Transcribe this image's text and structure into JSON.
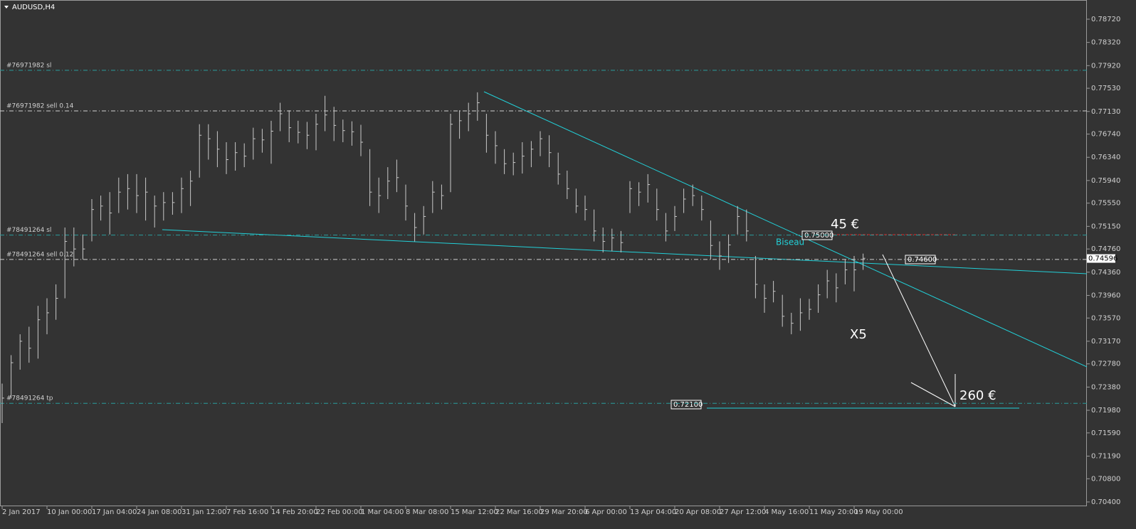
{
  "chart_data": {
    "type": "ohlc",
    "title": "AUDUSD,H4",
    "categories": [
      "2 Jan 2017",
      null,
      null,
      null,
      null,
      "10 Jan 00:00",
      null,
      null,
      null,
      null,
      "17 Jan 04:00",
      null,
      null,
      null,
      null,
      "24 Jan 08:00",
      null,
      null,
      null,
      null,
      "31 Jan 12:00",
      null,
      null,
      null,
      null,
      "7 Feb 16:00",
      null,
      null,
      null,
      null,
      "14 Feb 20:00",
      null,
      null,
      null,
      null,
      "22 Feb 00:00",
      null,
      null,
      null,
      null,
      "1 Mar 04:00",
      null,
      null,
      null,
      null,
      "8 Mar 08:00",
      null,
      null,
      null,
      null,
      "15 Mar 12:00",
      null,
      null,
      null,
      null,
      "22 Mar 16:00",
      null,
      null,
      null,
      null,
      "29 Mar 20:00",
      null,
      null,
      null,
      null,
      "6 Apr 00:00",
      null,
      null,
      null,
      null,
      "13 Apr 04:00",
      null,
      null,
      null,
      null,
      "20 Apr 08:00",
      null,
      null,
      null,
      null,
      "27 Apr 12:00",
      null,
      null,
      null,
      null,
      "4 May 16:00",
      null,
      null,
      null,
      null,
      "11 May 20:00",
      null,
      null,
      null,
      null,
      "19 May 00:00",
      null
    ],
    "high": [
      0.7244,
      0.7293,
      0.7329,
      0.7342,
      0.7378,
      0.7391,
      0.7415,
      0.7513,
      0.7513,
      0.7501,
      0.7562,
      0.7568,
      0.7574,
      0.7599,
      0.7605,
      0.7605,
      0.7599,
      0.7568,
      0.7574,
      0.7574,
      0.7599,
      0.7611,
      0.7691,
      0.7691,
      0.7679,
      0.766,
      0.766,
      0.7658,
      0.7685,
      0.7683,
      0.7697,
      0.7728,
      0.7715,
      0.7697,
      0.7695,
      0.7709,
      0.774,
      0.7721,
      0.7699,
      0.7696,
      0.769,
      0.7648,
      0.7599,
      0.7617,
      0.763,
      0.7587,
      0.7538,
      0.755,
      0.7593,
      0.7587,
      0.7709,
      0.7715,
      0.7728,
      0.7746,
      0.7709,
      0.7679,
      0.7648,
      0.7642,
      0.766,
      0.7662,
      0.7679,
      0.7672,
      0.7642,
      0.7611,
      0.758,
      0.7568,
      0.7544,
      0.7513,
      0.7511,
      0.7507,
      0.7593,
      0.7591,
      0.7605,
      0.758,
      0.7538,
      0.755,
      0.758,
      0.7587,
      0.7568,
      0.7525,
      0.7489,
      0.7501,
      0.755,
      0.7544,
      0.7464,
      0.7415,
      0.7421,
      0.7397,
      0.7366,
      0.7391,
      0.739,
      0.7415,
      0.744,
      0.7434,
      0.7458,
      0.7464,
      0.7468
    ],
    "low": [
      0.7176,
      0.7219,
      0.7268,
      0.728,
      0.7287,
      0.7329,
      0.7354,
      0.7391,
      0.7446,
      0.7458,
      0.7489,
      0.7525,
      0.7501,
      0.7538,
      0.7544,
      0.7538,
      0.7525,
      0.7513,
      0.7525,
      0.7535,
      0.7538,
      0.755,
      0.7599,
      0.763,
      0.7617,
      0.7605,
      0.7611,
      0.7617,
      0.763,
      0.7642,
      0.7623,
      0.7679,
      0.766,
      0.7658,
      0.7648,
      0.7646,
      0.7679,
      0.7662,
      0.766,
      0.7654,
      0.7636,
      0.755,
      0.7538,
      0.7562,
      0.7574,
      0.7525,
      0.7489,
      0.7501,
      0.7538,
      0.7544,
      0.7574,
      0.7666,
      0.7679,
      0.7697,
      0.7642,
      0.7623,
      0.7605,
      0.7603,
      0.7606,
      0.7617,
      0.7636,
      0.7617,
      0.7587,
      0.7562,
      0.7538,
      0.7525,
      0.7489,
      0.747,
      0.7472,
      0.747,
      0.7538,
      0.755,
      0.7556,
      0.7525,
      0.7489,
      0.7507,
      0.7538,
      0.755,
      0.7525,
      0.7458,
      0.744,
      0.7452,
      0.7501,
      0.7489,
      0.7391,
      0.7366,
      0.7384,
      0.7342,
      0.7329,
      0.7335,
      0.7354,
      0.7366,
      0.7391,
      0.7384,
      0.7415,
      0.7403,
      0.744
    ],
    "close": [
      0.7219,
      0.728,
      0.7317,
      0.7305,
      0.7354,
      0.7366,
      0.7391,
      0.7489,
      0.7476,
      0.7476,
      0.7544,
      0.755,
      0.7538,
      0.7574,
      0.758,
      0.7568,
      0.7574,
      0.755,
      0.7556,
      0.7556,
      0.758,
      0.7593,
      0.7672,
      0.7666,
      0.7648,
      0.763,
      0.7642,
      0.7636,
      0.7666,
      0.7664,
      0.7679,
      0.7709,
      0.7685,
      0.7677,
      0.7672,
      0.7691,
      0.7707,
      0.7689,
      0.768,
      0.7678,
      0.766,
      0.7574,
      0.7568,
      0.7593,
      0.7599,
      0.755,
      0.7513,
      0.7532,
      0.7574,
      0.7568,
      0.7691,
      0.7697,
      0.7709,
      0.7728,
      0.7672,
      0.7654,
      0.7623,
      0.7625,
      0.7636,
      0.7648,
      0.7666,
      0.7642,
      0.7605,
      0.758,
      0.755,
      0.7544,
      0.7507,
      0.7489,
      0.7495,
      0.7487,
      0.758,
      0.7574,
      0.7587,
      0.7544,
      0.7507,
      0.7532,
      0.7562,
      0.7568,
      0.7544,
      0.7482,
      0.7464,
      0.7483,
      0.7532,
      0.7507,
      0.7415,
      0.7391,
      0.7403,
      0.736,
      0.7348,
      0.7366,
      0.7372,
      0.7397,
      0.7421,
      0.7409,
      0.744,
      0.744,
      0.746
    ],
    "color": "#c8c8c8",
    "ylim": [
      0.70326,
      0.79051
    ],
    "yticks": [
      {
        "value": 0.7872,
        "label": "0.78720"
      },
      {
        "value": 0.7832,
        "label": "0.78320"
      },
      {
        "value": 0.7792,
        "label": "0.77920"
      },
      {
        "value": 0.7753,
        "label": "0.77530"
      },
      {
        "value": 0.7713,
        "label": "0.77130"
      },
      {
        "value": 0.7674,
        "label": "0.76740"
      },
      {
        "value": 0.7634,
        "label": "0.76340"
      },
      {
        "value": 0.7594,
        "label": "0.75940"
      },
      {
        "value": 0.7555,
        "label": "0.75550"
      },
      {
        "value": 0.7515,
        "label": "0.75150"
      },
      {
        "value": 0.7476,
        "label": "0.74760"
      },
      {
        "value": 0.7436,
        "label": "0.74360"
      },
      {
        "value": 0.7396,
        "label": "0.73960"
      },
      {
        "value": 0.7357,
        "label": "0.73570"
      },
      {
        "value": 0.7317,
        "label": "0.73170"
      },
      {
        "value": 0.7278,
        "label": "0.72780"
      },
      {
        "value": 0.7238,
        "label": "0.72380"
      },
      {
        "value": 0.7198,
        "label": "0.71980"
      },
      {
        "value": 0.7159,
        "label": "0.71590"
      },
      {
        "value": 0.7119,
        "label": "0.71190"
      },
      {
        "value": 0.708,
        "label": "0.70800"
      },
      {
        "value": 0.704,
        "label": "0.70400"
      }
    ],
    "current_price": {
      "value": 0.74596,
      "label": "0.74596"
    },
    "levels": [
      {
        "label": "#76971982 sl",
        "value": 0.7784,
        "color": "#2a9d9d"
      },
      {
        "label": "#76971982 sell 0.14",
        "value": 0.7714,
        "color": "#d0d0d0"
      },
      {
        "label": "#78491264 sl",
        "value": 0.75,
        "color": "#2a9d9d"
      },
      {
        "label": "#78491264 sell 0.12",
        "value": 0.7458,
        "color": "#d0d0d0"
      },
      {
        "label": "#78491264 tp",
        "value": 0.721,
        "color": "#2a9d9d"
      }
    ],
    "annotations": [
      "45 €",
      "Biseau",
      "X5",
      "260 €",
      "0.75000",
      "0.74600",
      "0.72100"
    ],
    "grid": false
  }
}
